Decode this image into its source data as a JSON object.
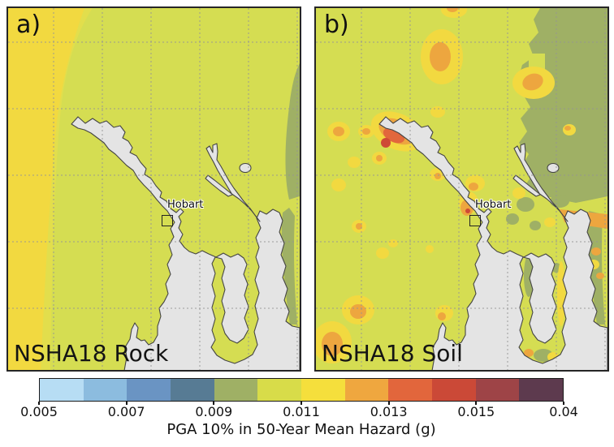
{
  "panels": [
    {
      "corner_label": "a)",
      "bottom_label": "NSHA18 Rock",
      "city_label": "Hobart"
    },
    {
      "corner_label": "b)",
      "bottom_label": "NSHA18 Soil",
      "city_label": "Hobart"
    }
  ],
  "colorbar": {
    "title": "PGA 10% in 50-Year Mean Hazard (g)",
    "tick_labels": [
      "0.005",
      "0.007",
      "0.009",
      "0.011",
      "0.013",
      "0.015",
      "0.04"
    ],
    "segment_colors": [
      "#b7ddf4",
      "#8cbcdf",
      "#6a94c3",
      "#577b94",
      "#9fb065",
      "#d8dc49",
      "#f5df3c",
      "#efa73f",
      "#e2663c",
      "#cb4937",
      "#9e4447",
      "#5d3a4e"
    ]
  },
  "map_colors": {
    "sea": "#e4e4e4",
    "coast": "#454545",
    "base": "#d5dd52",
    "yellow": "#f2d940",
    "yellow_soft": "#e2de4c",
    "olive": "#9fb065",
    "orange": "#eda63f",
    "orange_red": "#e2673c",
    "red": "#ce4936",
    "grid": "#949494"
  },
  "chart_data": {
    "type": "heatmap",
    "title": "PGA 10% in 50-Year Mean Hazard (g)",
    "panels": [
      "NSHA18 Rock",
      "NSHA18 Soil"
    ],
    "city_annotation": "Hobart",
    "colorbar_ticks": [
      0.005,
      0.007,
      0.009,
      0.011,
      0.013,
      0.015,
      0.04
    ],
    "colorbar_segments": 12,
    "units": "g",
    "legend_position": "bottom"
  }
}
